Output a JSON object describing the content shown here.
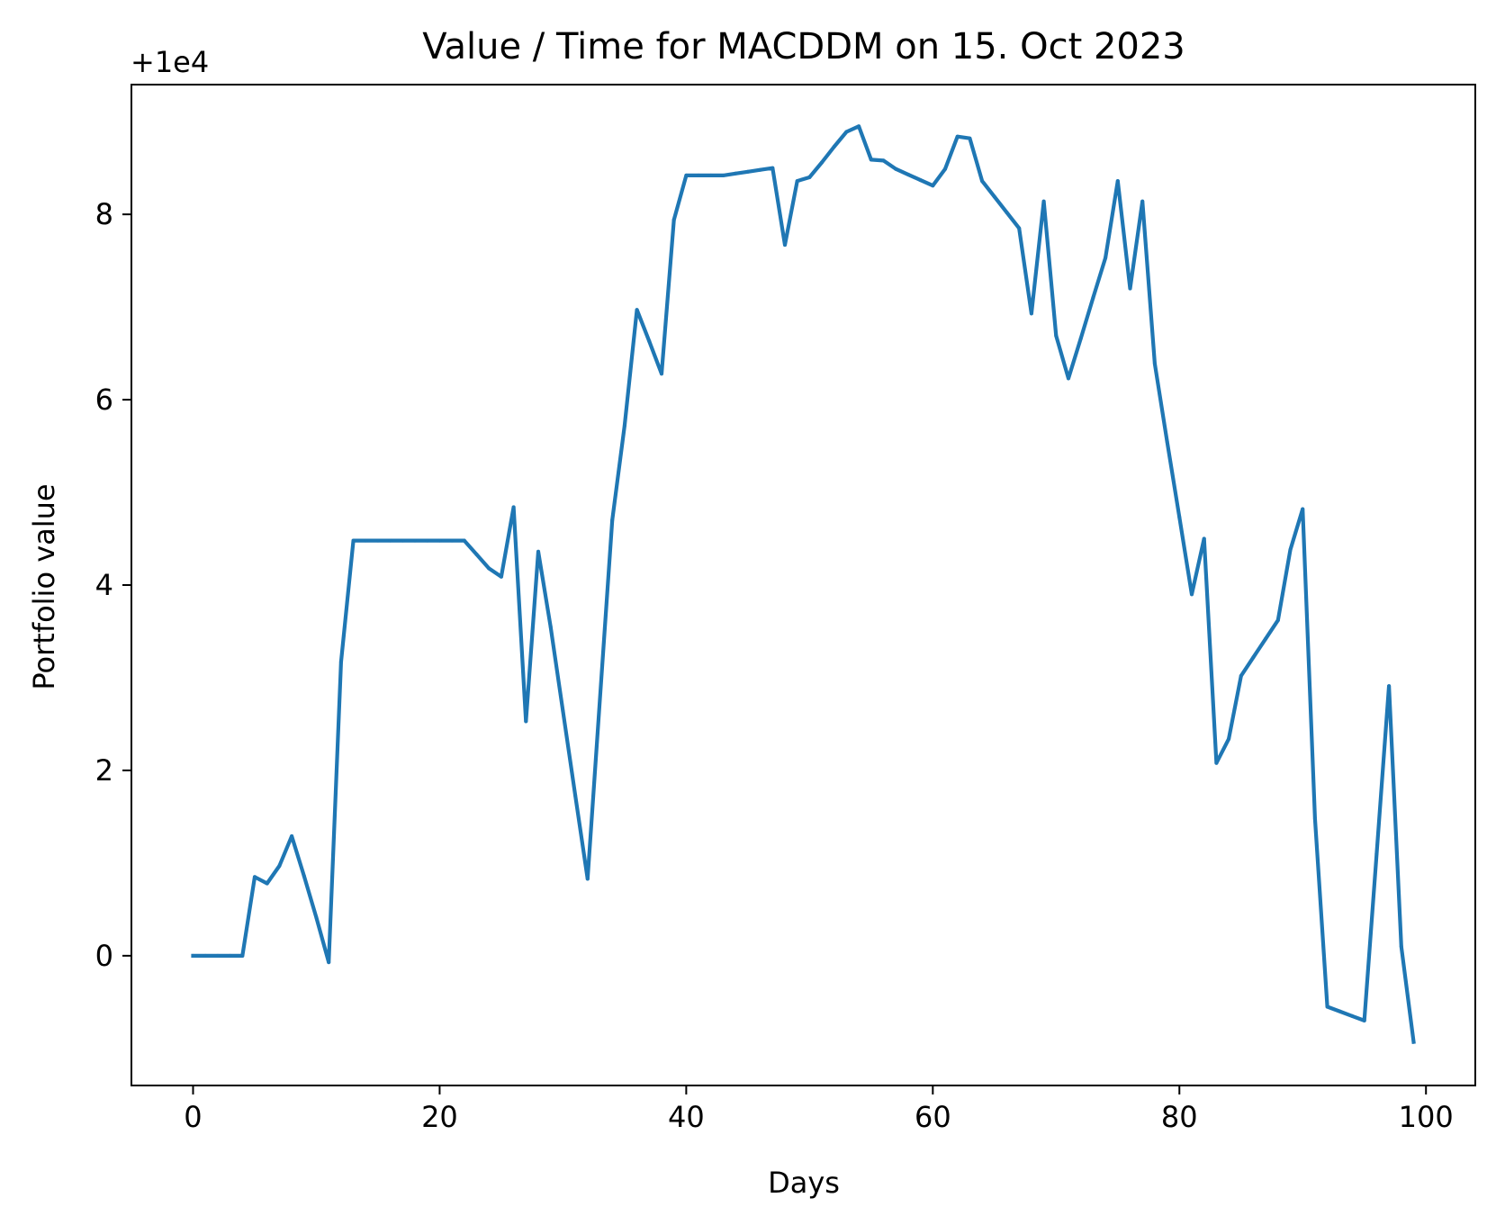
{
  "chart_data": {
    "type": "line",
    "title": "Value / Time for MACDDM on 15. Oct 2023",
    "xlabel": "Days",
    "ylabel": "Portfolio value",
    "offset_label": "+1e4",
    "xlim": [
      -5,
      104
    ],
    "ylim": [
      -1.4,
      9.4
    ],
    "xticks": [
      0,
      20,
      40,
      60,
      80,
      100
    ],
    "xtick_labels": [
      "0",
      "20",
      "40",
      "60",
      "80",
      "100"
    ],
    "yticks": [
      0,
      2,
      4,
      6,
      8
    ],
    "ytick_labels": [
      "0",
      "2",
      "4",
      "6",
      "8"
    ],
    "grid": false,
    "line_color": "#1f77b4",
    "series": [
      {
        "x": [
          0,
          1,
          2,
          3,
          4,
          5,
          6,
          7,
          8,
          9,
          10,
          11,
          12,
          13,
          14,
          15,
          16,
          17,
          18,
          19,
          20,
          21,
          22,
          23,
          24,
          25,
          26,
          27,
          28,
          29,
          30,
          31,
          32,
          33,
          34,
          35,
          36,
          37,
          38,
          39,
          40,
          41,
          42,
          43,
          44,
          45,
          46,
          47,
          48,
          49,
          50,
          51,
          52,
          53,
          54,
          55,
          56,
          57,
          58,
          59,
          60,
          61,
          62,
          63,
          64,
          65,
          66,
          67,
          68,
          69,
          70,
          71,
          72,
          73,
          74,
          75,
          76,
          77,
          78,
          79,
          80,
          81,
          82,
          83,
          84,
          85,
          86,
          87,
          88,
          89,
          90,
          91,
          92,
          93,
          94,
          95,
          96,
          97,
          98,
          99
        ],
        "values": [
          0.0,
          0.0,
          0.0,
          0.0,
          0.0,
          0.85,
          0.78,
          0.97,
          1.29,
          0.86,
          0.41,
          -0.07,
          3.17,
          4.48,
          4.48,
          4.48,
          4.48,
          4.48,
          4.48,
          4.48,
          4.48,
          4.48,
          4.48,
          4.33,
          4.18,
          4.09,
          4.84,
          2.53,
          4.36,
          3.55,
          2.64,
          1.73,
          0.83,
          2.77,
          4.7,
          5.72,
          6.97,
          6.63,
          6.28,
          7.94,
          8.42,
          8.42,
          8.42,
          8.42,
          8.44,
          8.46,
          8.48,
          8.5,
          7.67,
          8.36,
          8.4,
          8.56,
          8.73,
          8.89,
          8.95,
          8.59,
          8.58,
          8.49,
          8.43,
          8.37,
          8.31,
          8.49,
          8.84,
          8.82,
          8.36,
          8.19,
          8.02,
          7.85,
          6.93,
          8.14,
          6.69,
          6.23,
          6.66,
          7.1,
          7.53,
          8.36,
          7.2,
          8.14,
          6.39,
          5.55,
          4.73,
          3.9,
          4.5,
          2.08,
          2.34,
          3.02,
          3.22,
          3.42,
          3.62,
          4.38,
          4.82,
          1.48,
          -0.55,
          -0.6,
          -0.65,
          -0.7,
          1.1,
          2.91,
          0.1,
          -0.93
        ]
      }
    ]
  }
}
